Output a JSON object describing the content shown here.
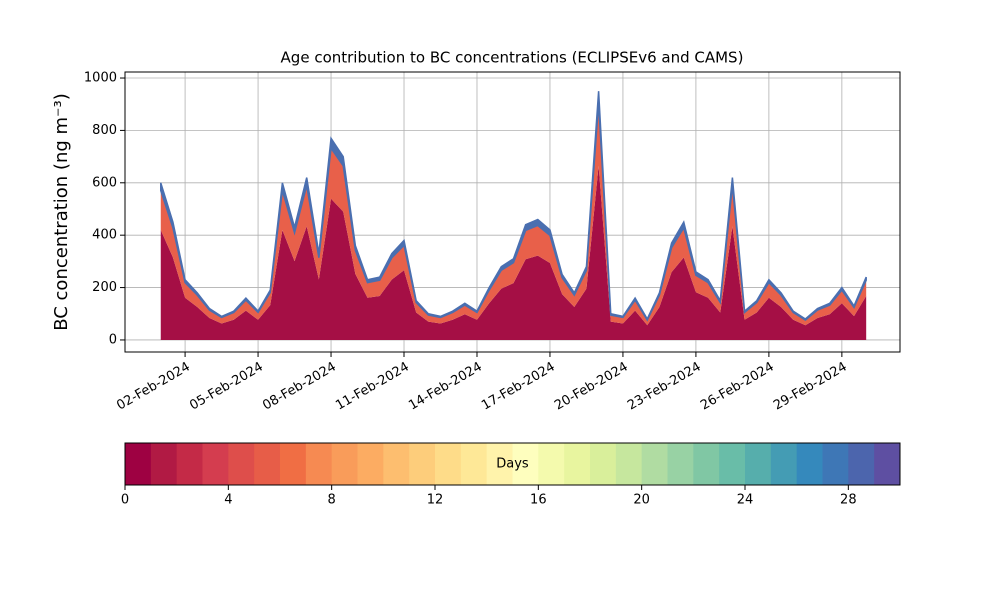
{
  "chart_data": {
    "type": "stacked_area",
    "title": "Age contribution to BC concentrations (ECLIPSEv6 and CAMS)",
    "ylabel": "BC concentration (ng m⁻³)",
    "x": [
      1,
      1.5,
      2,
      2.5,
      3,
      3.5,
      4,
      4.5,
      5,
      5.5,
      6,
      6.5,
      7,
      7.5,
      8,
      8.5,
      9,
      9.5,
      10,
      10.5,
      11,
      11.5,
      12,
      12.5,
      13,
      13.5,
      14,
      14.5,
      15,
      15.5,
      16,
      16.5,
      17,
      17.5,
      18,
      18.5,
      19,
      19.5,
      20,
      20.5,
      21,
      21.5,
      22,
      22.5,
      23,
      23.5,
      24,
      24.5,
      25,
      25.5,
      26,
      26.5,
      27,
      27.5,
      28,
      28.5,
      29,
      29.5,
      30
    ],
    "series": [
      {
        "color": "#a50f45",
        "values": [
          420,
          315,
          161,
          126,
          84,
          63,
          77,
          112,
          77,
          133,
          420,
          301,
          434,
          231,
          539,
          490,
          252,
          161,
          168,
          231,
          266,
          105,
          70,
          63,
          77,
          98,
          77,
          140,
          196,
          217,
          308,
          322,
          294,
          175,
          126,
          196,
          665,
          70,
          63,
          112,
          56,
          126,
          259,
          315,
          182,
          161,
          105,
          434,
          77,
          105,
          161,
          126,
          77,
          56,
          84,
          98,
          140,
          91,
          168
        ]
      },
      {
        "color": "#e8604a",
        "values": [
          150,
          113,
          58,
          45,
          30,
          23,
          28,
          40,
          28,
          48,
          150,
          108,
          155,
          83,
          193,
          175,
          90,
          58,
          60,
          83,
          95,
          38,
          25,
          23,
          28,
          35,
          28,
          50,
          70,
          78,
          110,
          115,
          105,
          63,
          45,
          70,
          238,
          25,
          23,
          40,
          20,
          45,
          93,
          113,
          65,
          58,
          38,
          155,
          28,
          38,
          58,
          45,
          28,
          20,
          30,
          35,
          50,
          33,
          60
        ]
      },
      {
        "color": "#4a6fb0",
        "values": [
          30,
          22,
          11,
          9,
          6,
          4,
          5,
          8,
          5,
          9,
          30,
          21,
          31,
          16,
          38,
          35,
          18,
          11,
          12,
          16,
          19,
          7,
          5,
          4,
          5,
          7,
          5,
          10,
          14,
          15,
          22,
          23,
          21,
          12,
          9,
          14,
          47,
          5,
          4,
          8,
          4,
          9,
          18,
          22,
          13,
          11,
          7,
          31,
          5,
          7,
          11,
          9,
          5,
          4,
          6,
          7,
          10,
          6,
          12
        ]
      }
    ],
    "xlim": [
      -0.47,
      31.39
    ],
    "xticks": [
      {
        "value": 2,
        "label": "02-Feb-2024"
      },
      {
        "value": 5,
        "label": "05-Feb-2024"
      },
      {
        "value": 8,
        "label": "08-Feb-2024"
      },
      {
        "value": 11,
        "label": "11-Feb-2024"
      },
      {
        "value": 14,
        "label": "14-Feb-2024"
      },
      {
        "value": 17,
        "label": "17-Feb-2024"
      },
      {
        "value": 20,
        "label": "20-Feb-2024"
      },
      {
        "value": 23,
        "label": "23-Feb-2024"
      },
      {
        "value": 26,
        "label": "26-Feb-2024"
      },
      {
        "value": 29,
        "label": "29-Feb-2024"
      }
    ],
    "ylim": [
      -46,
      1023
    ],
    "yticks": [
      0,
      200,
      400,
      600,
      800,
      1000
    ],
    "grid": true,
    "colorbar": {
      "label": "Days",
      "lim": [
        0,
        30
      ],
      "ticks": [
        0,
        4,
        8,
        12,
        16,
        20,
        24,
        28
      ],
      "colors": [
        "#9e0142",
        "#b11a44",
        "#c42a47",
        "#d43d4f",
        "#de4e4b",
        "#e75d48",
        "#f06e44",
        "#f68a52",
        "#f99c5a",
        "#fcac62",
        "#fdbe6f",
        "#fdcd7b",
        "#fedc89",
        "#fee897",
        "#fff3ab",
        "#fefebe",
        "#f4faad",
        "#e8f59f",
        "#d9ef9b",
        "#c6e79e",
        "#b0dca2",
        "#98d2a4",
        "#80c7a4",
        "#69bda8",
        "#56aeac",
        "#449cb4",
        "#3589bc",
        "#3e77b6",
        "#4c65ad",
        "#5e4fa2"
      ]
    }
  }
}
